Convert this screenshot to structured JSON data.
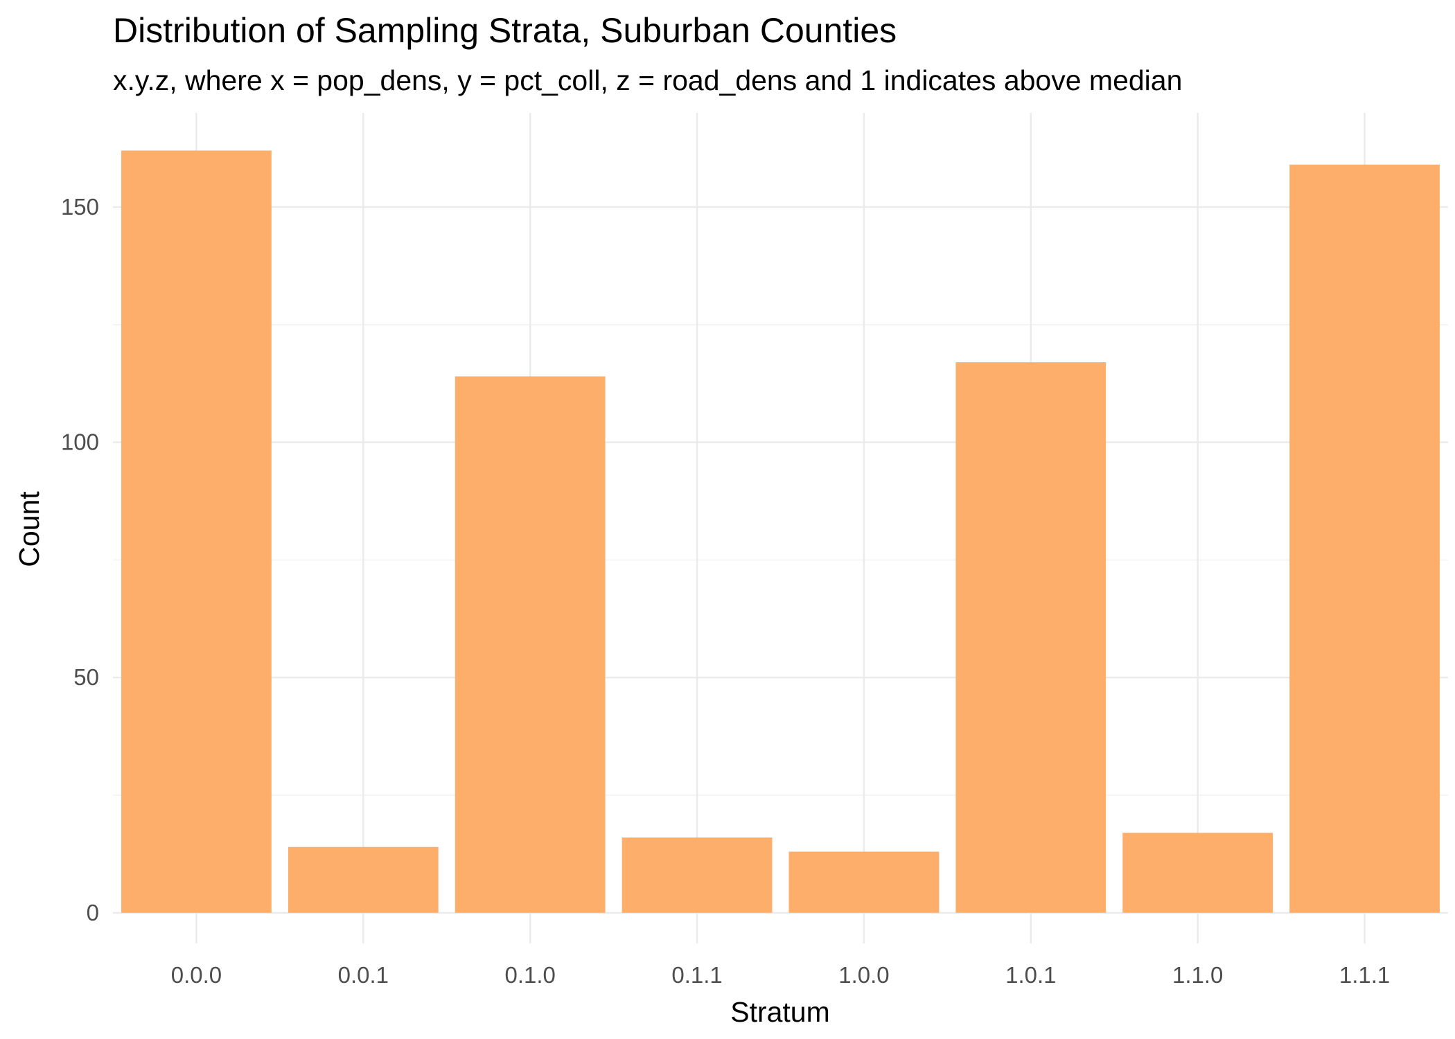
{
  "chart_data": {
    "type": "bar",
    "title": "Distribution of Sampling Strata, Suburban Counties",
    "subtitle": "x.y.z, where x = pop_dens, y = pct_coll, z = road_dens and 1 indicates above median",
    "xlabel": "Stratum",
    "ylabel": "Count",
    "categories": [
      "0.0.0",
      "0.0.1",
      "0.1.0",
      "0.1.1",
      "1.0.0",
      "1.0.1",
      "1.1.0",
      "1.1.1"
    ],
    "values": [
      162,
      14,
      114,
      16,
      13,
      117,
      17,
      159
    ],
    "y_ticks": [
      "0",
      "50",
      "100",
      "150"
    ],
    "y_tick_values": [
      0,
      50,
      100,
      150
    ],
    "ylim": [
      -6.5,
      170
    ],
    "grid": true,
    "bar_color": "#fdae6b"
  }
}
